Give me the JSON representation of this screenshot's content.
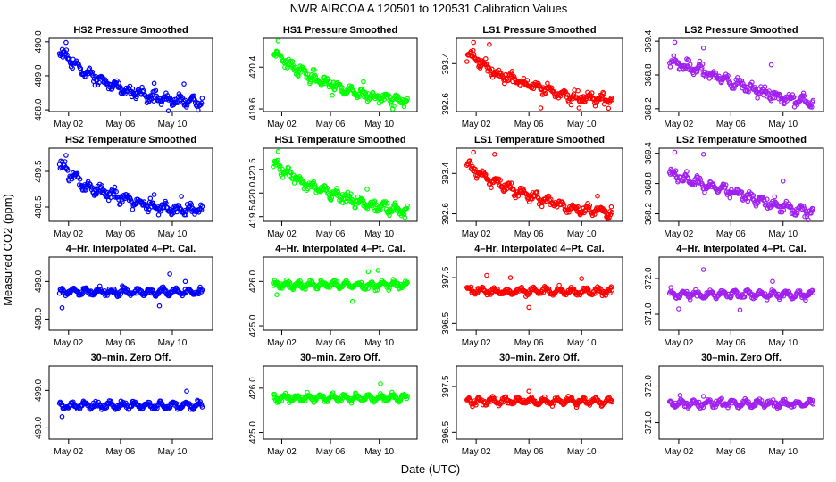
{
  "chart_data": {
    "type": "scatter",
    "title": "NWR   AIRCOA A   120501 to 120531   Calibration Values",
    "xlabel": "Date (UTC)",
    "ylabel": "Measured CO2 (ppm)",
    "x_range_days": [
      0.0,
      12.6
    ],
    "x_ticks": [
      {
        "day": 1.5,
        "label": "May 02"
      },
      {
        "day": 5.5,
        "label": "May 06"
      },
      {
        "day": 9.5,
        "label": "May 10"
      }
    ],
    "x_data_range": [
      0.8,
      11.8
    ],
    "colors": {
      "HS2": "#0000ff",
      "HS1": "#00ff00",
      "LS1": "#ff0000",
      "LS2": "#a020f0"
    },
    "rows": [
      {
        "row_label": "Pressure Smoothed",
        "panels": [
          {
            "tank": "HS2",
            "title": "HS2 Pressure Smoothed",
            "ylim": [
              487.95,
              490.1
            ],
            "yticks": [
              {
                "v": 488.0,
                "label": "488.0"
              },
              {
                "v": 489.0,
                "label": "489.0"
              },
              {
                "v": 490.0,
                "label": "490.0"
              }
            ],
            "trend": [
              {
                "d": 0.8,
                "v": 489.72
              },
              {
                "d": 3.0,
                "v": 489.05
              },
              {
                "d": 6.0,
                "v": 488.55
              },
              {
                "d": 9.0,
                "v": 488.3
              },
              {
                "d": 11.8,
                "v": 488.25
              }
            ],
            "outliers": [
              {
                "d": 1.3,
                "v": 489.98
              },
              {
                "d": 8.1,
                "v": 488.78
              },
              {
                "d": 10.4,
                "v": 488.76
              },
              {
                "d": 9.2,
                "v": 487.97
              }
            ]
          },
          {
            "tank": "HS1",
            "title": "HS1 Pressure Smoothed",
            "ylim": [
              419.55,
              420.95
            ],
            "yticks": [
              {
                "v": 419.6,
                "label": "419.6"
              },
              {
                "v": 420.4,
                "label": "420.4"
              }
            ],
            "trend": [
              {
                "d": 0.8,
                "v": 420.68
              },
              {
                "d": 3.0,
                "v": 420.32
              },
              {
                "d": 6.0,
                "v": 420.02
              },
              {
                "d": 9.0,
                "v": 419.82
              },
              {
                "d": 11.8,
                "v": 419.75
              }
            ],
            "outliers": [
              {
                "d": 1.2,
                "v": 420.9
              },
              {
                "d": 8.2,
                "v": 420.12
              },
              {
                "d": 10.6,
                "v": 419.6
              }
            ]
          },
          {
            "tank": "LS1",
            "title": "LS1 Pressure Smoothed",
            "ylim": [
              392.45,
              393.9
            ],
            "yticks": [
              {
                "v": 392.6,
                "label": "392.6"
              },
              {
                "v": 393.4,
                "label": "393.4"
              }
            ],
            "trend": [
              {
                "d": 0.8,
                "v": 393.6
              },
              {
                "d": 3.0,
                "v": 393.2
              },
              {
                "d": 6.0,
                "v": 392.95
              },
              {
                "d": 9.0,
                "v": 392.72
              },
              {
                "d": 11.8,
                "v": 392.68
              }
            ],
            "outliers": [
              {
                "d": 1.3,
                "v": 393.82
              },
              {
                "d": 2.5,
                "v": 393.78
              },
              {
                "d": 6.4,
                "v": 392.52
              },
              {
                "d": 9.3,
                "v": 392.52
              }
            ]
          },
          {
            "tank": "LS2",
            "title": "LS2 Pressure Smoothed",
            "ylim": [
              368.15,
              369.45
            ],
            "yticks": [
              {
                "v": 368.2,
                "label": "368.2"
              },
              {
                "v": 368.8,
                "label": "368.8"
              },
              {
                "v": 369.4,
                "label": "369.4"
              }
            ],
            "trend": [
              {
                "d": 0.8,
                "v": 369.05
              },
              {
                "d": 3.0,
                "v": 368.9
              },
              {
                "d": 6.0,
                "v": 368.65
              },
              {
                "d": 9.0,
                "v": 368.42
              },
              {
                "d": 11.8,
                "v": 368.32
              }
            ],
            "outliers": [
              {
                "d": 1.2,
                "v": 369.38
              },
              {
                "d": 3.4,
                "v": 369.28
              },
              {
                "d": 8.6,
                "v": 368.98
              }
            ]
          }
        ]
      },
      {
        "row_label": "Temperature Smoothed",
        "panels": [
          {
            "tank": "HS2",
            "title": "HS2 Temperature Smoothed",
            "ylim": [
              488.1,
              490.15
            ],
            "yticks": [
              {
                "v": 488.5,
                "label": "488.5"
              },
              {
                "v": 489.5,
                "label": "489.5"
              }
            ],
            "trend": [
              {
                "d": 0.8,
                "v": 489.7
              },
              {
                "d": 3.0,
                "v": 489.05
              },
              {
                "d": 6.0,
                "v": 488.7
              },
              {
                "d": 9.0,
                "v": 488.45
              },
              {
                "d": 11.8,
                "v": 488.42
              }
            ],
            "outliers": [
              {
                "d": 1.3,
                "v": 489.95
              },
              {
                "d": 8.1,
                "v": 488.85
              },
              {
                "d": 10.2,
                "v": 488.8
              }
            ]
          },
          {
            "tank": "HS1",
            "title": "HS1 Temperature Smoothed",
            "ylim": [
              419.4,
              420.95
            ],
            "yticks": [
              {
                "v": 419.5,
                "label": "419.5"
              },
              {
                "v": 420.0,
                "label": "420.0"
              },
              {
                "v": 420.5,
                "label": "420.5"
              }
            ],
            "trend": [
              {
                "d": 0.8,
                "v": 420.62
              },
              {
                "d": 3.0,
                "v": 420.25
              },
              {
                "d": 6.0,
                "v": 419.95
              },
              {
                "d": 9.0,
                "v": 419.72
              },
              {
                "d": 11.8,
                "v": 419.62
              }
            ],
            "outliers": [
              {
                "d": 1.2,
                "v": 420.88
              },
              {
                "d": 8.5,
                "v": 420.08
              },
              {
                "d": 11.6,
                "v": 419.48
              }
            ]
          },
          {
            "tank": "LS1",
            "title": "LS1 Temperature Smoothed",
            "ylim": [
              392.45,
              393.9
            ],
            "yticks": [
              {
                "v": 392.6,
                "label": "392.6"
              },
              {
                "v": 393.4,
                "label": "393.4"
              }
            ],
            "trend": [
              {
                "d": 0.8,
                "v": 393.55
              },
              {
                "d": 3.0,
                "v": 393.2
              },
              {
                "d": 6.0,
                "v": 392.92
              },
              {
                "d": 9.0,
                "v": 392.7
              },
              {
                "d": 11.8,
                "v": 392.63
              }
            ],
            "outliers": [
              {
                "d": 1.3,
                "v": 393.82
              },
              {
                "d": 2.9,
                "v": 393.78
              },
              {
                "d": 10.7,
                "v": 392.95
              },
              {
                "d": 11.5,
                "v": 392.5
              }
            ]
          },
          {
            "tank": "LS2",
            "title": "LS2 Temperature Smoothed",
            "ylim": [
              368.05,
              369.5
            ],
            "yticks": [
              {
                "v": 368.2,
                "label": "368.2"
              },
              {
                "v": 368.8,
                "label": "368.8"
              },
              {
                "v": 369.4,
                "label": "369.4"
              }
            ],
            "trend": [
              {
                "d": 0.8,
                "v": 369.0
              },
              {
                "d": 3.0,
                "v": 368.82
              },
              {
                "d": 6.0,
                "v": 368.6
              },
              {
                "d": 9.0,
                "v": 368.38
              },
              {
                "d": 11.8,
                "v": 368.22
              }
            ],
            "outliers": [
              {
                "d": 1.2,
                "v": 369.42
              },
              {
                "d": 3.4,
                "v": 369.38
              },
              {
                "d": 9.5,
                "v": 368.85
              }
            ]
          }
        ]
      },
      {
        "row_label": "4-Hr. Interpolated 4-Pt. Cal.",
        "panels": [
          {
            "tank": "HS2",
            "title": "4–Hr. Interpolated 4–Pt. Cal.",
            "ylim": [
              497.7,
              499.65
            ],
            "yticks": [
              {
                "v": 498.0,
                "label": "498.0"
              },
              {
                "v": 499.0,
                "label": "499.0"
              }
            ],
            "trend": [
              {
                "d": 0.8,
                "v": 498.72
              },
              {
                "d": 11.8,
                "v": 498.72
              }
            ],
            "outliers": [
              {
                "d": 9.3,
                "v": 499.2
              },
              {
                "d": 10.5,
                "v": 499.0
              },
              {
                "d": 1.0,
                "v": 498.3
              },
              {
                "d": 8.5,
                "v": 498.35
              }
            ]
          },
          {
            "tank": "HS1",
            "title": "4–Hr. Interpolated 4–Pt. Cal.",
            "ylim": [
              424.9,
              426.55
            ],
            "yticks": [
              {
                "v": 425.0,
                "label": "425.0"
              },
              {
                "v": 426.0,
                "label": "426.0"
              }
            ],
            "trend": [
              {
                "d": 0.8,
                "v": 425.92
              },
              {
                "d": 11.8,
                "v": 425.92
              }
            ],
            "outliers": [
              {
                "d": 8.6,
                "v": 426.22
              },
              {
                "d": 9.4,
                "v": 426.25
              },
              {
                "d": 7.3,
                "v": 425.55
              },
              {
                "d": 1.1,
                "v": 425.7
              }
            ]
          },
          {
            "tank": "LS1",
            "title": "4–Hr. Interpolated 4–Pt. Cal.",
            "ylim": [
              396.35,
              397.95
            ],
            "yticks": [
              {
                "v": 396.5,
                "label": "396.5"
              },
              {
                "v": 397.5,
                "label": "397.5"
              }
            ],
            "trend": [
              {
                "d": 0.8,
                "v": 397.2
              },
              {
                "d": 11.8,
                "v": 397.2
              }
            ],
            "outliers": [
              {
                "d": 2.3,
                "v": 397.55
              },
              {
                "d": 4.1,
                "v": 397.5
              },
              {
                "d": 9.5,
                "v": 397.48
              },
              {
                "d": 5.5,
                "v": 396.85
              }
            ]
          },
          {
            "tank": "LS2",
            "title": "4–Hr. Interpolated 4–Pt. Cal.",
            "ylim": [
              370.55,
              372.6
            ],
            "yticks": [
              {
                "v": 371.0,
                "label": "371.0"
              },
              {
                "v": 372.0,
                "label": "372.0"
              }
            ],
            "trend": [
              {
                "d": 0.8,
                "v": 371.55
              },
              {
                "d": 11.8,
                "v": 371.55
              }
            ],
            "outliers": [
              {
                "d": 3.4,
                "v": 372.25
              },
              {
                "d": 8.7,
                "v": 371.92
              },
              {
                "d": 1.5,
                "v": 371.15
              },
              {
                "d": 6.2,
                "v": 371.12
              }
            ]
          }
        ]
      },
      {
        "row_label": "30-min. Zero Off.",
        "panels": [
          {
            "tank": "HS2",
            "title": "30–min. Zero Off.",
            "ylim": [
              497.7,
              499.65
            ],
            "yticks": [
              {
                "v": 498.0,
                "label": "498.0"
              },
              {
                "v": 499.0,
                "label": "499.0"
              }
            ],
            "trend": [
              {
                "d": 0.8,
                "v": 498.6
              },
              {
                "d": 11.8,
                "v": 498.6
              }
            ],
            "outliers": [
              {
                "d": 10.6,
                "v": 498.98
              },
              {
                "d": 1.0,
                "v": 498.3
              }
            ]
          },
          {
            "tank": "HS1",
            "title": "30–min. Zero Off.",
            "ylim": [
              424.85,
              426.5
            ],
            "yticks": [
              {
                "v": 425.0,
                "label": "425.0"
              },
              {
                "v": 426.0,
                "label": "426.0"
              }
            ],
            "trend": [
              {
                "d": 0.8,
                "v": 425.78
              },
              {
                "d": 11.8,
                "v": 425.78
              }
            ],
            "outliers": [
              {
                "d": 9.6,
                "v": 426.1
              }
            ]
          },
          {
            "tank": "LS1",
            "title": "30–min. Zero Off.",
            "ylim": [
              396.35,
              397.95
            ],
            "yticks": [
              {
                "v": 396.5,
                "label": "396.5"
              },
              {
                "v": 397.5,
                "label": "397.5"
              }
            ],
            "trend": [
              {
                "d": 0.8,
                "v": 397.18
              },
              {
                "d": 11.8,
                "v": 397.18
              }
            ],
            "outliers": [
              {
                "d": 5.5,
                "v": 397.4
              }
            ]
          },
          {
            "tank": "LS2",
            "title": "30–min. Zero Off.",
            "ylim": [
              370.55,
              372.55
            ],
            "yticks": [
              {
                "v": 371.0,
                "label": "371.0"
              },
              {
                "v": 372.0,
                "label": "372.0"
              }
            ],
            "trend": [
              {
                "d": 0.8,
                "v": 371.52
              },
              {
                "d": 11.8,
                "v": 371.52
              }
            ],
            "outliers": [
              {
                "d": 1.6,
                "v": 371.75
              },
              {
                "d": 3.4,
                "v": 371.72
              }
            ]
          }
        ]
      }
    ]
  }
}
